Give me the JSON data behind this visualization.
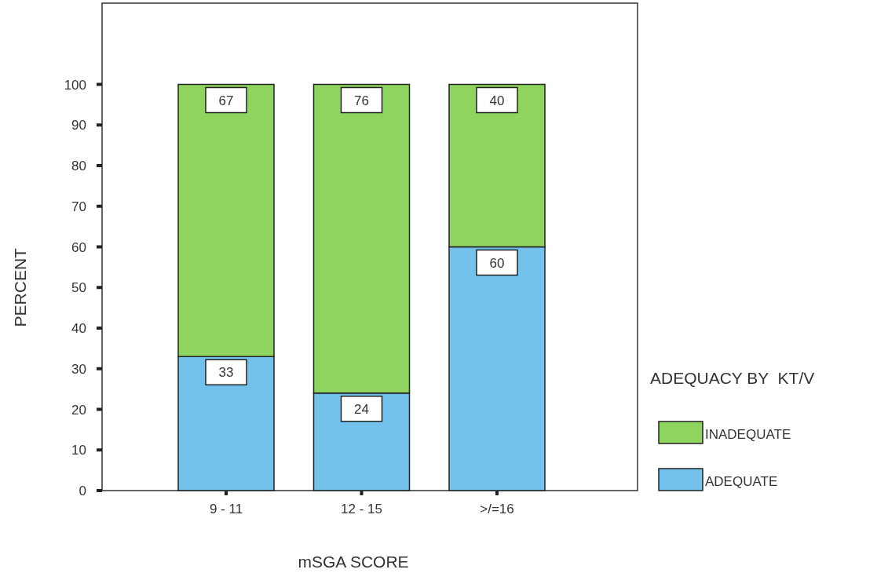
{
  "chart_data": {
    "type": "bar",
    "stacked": true,
    "xlabel": "mSGA SCORE",
    "ylabel": "PERCENT",
    "legend_title": "ADEQUACY BY  KT/V",
    "categories": [
      "9 - 11",
      "12 - 15",
      ">/=16"
    ],
    "series": [
      {
        "name": "ADEQUATE",
        "color": "#72c2ec",
        "values": [
          33,
          24,
          60
        ]
      },
      {
        "name": "INADEQUATE",
        "color": "#8fd45e",
        "values": [
          67,
          76,
          40
        ]
      }
    ],
    "ylim": [
      0,
      120
    ],
    "yticks": [
      0,
      10,
      20,
      30,
      40,
      50,
      60,
      70,
      80,
      90,
      100
    ],
    "data_labels": true,
    "legend": "right",
    "grid": false
  }
}
